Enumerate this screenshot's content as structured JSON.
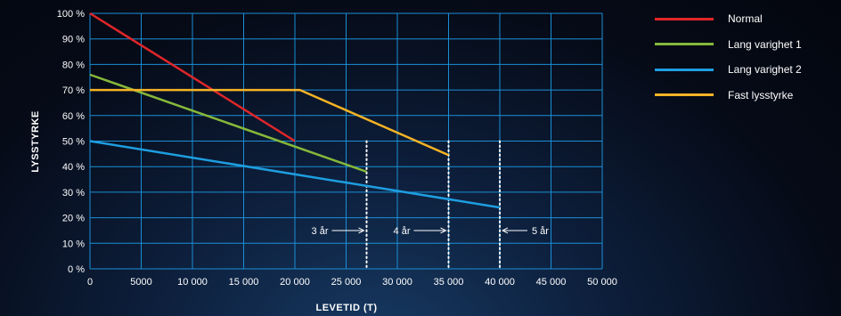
{
  "chart_data": {
    "type": "line",
    "title": "",
    "xlabel": "LEVETID (T)",
    "ylabel": "LYSSTYRKE",
    "xlim": [
      0,
      50000
    ],
    "ylim": [
      0,
      100
    ],
    "x_ticks": [
      "0",
      "5000",
      "10 000",
      "15 000",
      "20 000",
      "25 000",
      "30 000",
      "35 000",
      "40 000",
      "45 000",
      "50 000"
    ],
    "y_ticks": [
      "0 %",
      "10 %",
      "20 %",
      "30 %",
      "40 %",
      "50 %",
      "60 %",
      "70 %",
      "80 %",
      "90 %",
      "100 %"
    ],
    "grid": true,
    "legend_position": "top-right",
    "series": [
      {
        "name": "Normal",
        "color": "#e0262a",
        "x": [
          0,
          20000
        ],
        "y": [
          100,
          50
        ]
      },
      {
        "name": "Lang varighet 1",
        "color": "#86b83a",
        "x": [
          0,
          27000
        ],
        "y": [
          76,
          38
        ]
      },
      {
        "name": "Lang varighet 2",
        "color": "#1e9ee0",
        "x": [
          0,
          40000
        ],
        "y": [
          50,
          24
        ]
      },
      {
        "name": "Fast lysstyrke",
        "color": "#f5b325",
        "x": [
          0,
          20500,
          35000
        ],
        "y": [
          70,
          70,
          44.5
        ]
      }
    ],
    "annotations": [
      {
        "label": "3 år",
        "x": 27000,
        "direction": "left"
      },
      {
        "label": "4 år",
        "x": 35000,
        "direction": "left"
      },
      {
        "label": "5 år",
        "x": 40000,
        "direction": "right"
      }
    ],
    "grid_color": "#1a8fd6"
  }
}
